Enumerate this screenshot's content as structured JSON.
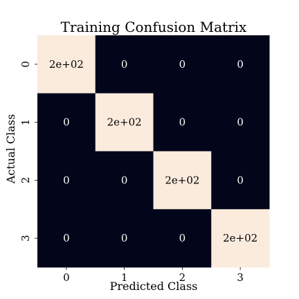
{
  "chart_data": {
    "type": "heatmap",
    "title": "Training Confusion Matrix",
    "xlabel": "Predicted Class",
    "ylabel": "Actual Class",
    "x_categories": [
      "0",
      "1",
      "2",
      "3"
    ],
    "y_categories": [
      "0",
      "1",
      "2",
      "3"
    ],
    "values": [
      [
        200,
        0,
        0,
        0
      ],
      [
        0,
        200,
        0,
        0
      ],
      [
        0,
        0,
        200,
        0
      ],
      [
        0,
        0,
        0,
        200
      ]
    ],
    "annotations": [
      [
        "2e+02",
        "0",
        "0",
        "0"
      ],
      [
        "0",
        "2e+02",
        "0",
        "0"
      ],
      [
        "0",
        "0",
        "2e+02",
        "0"
      ],
      [
        "0",
        "0",
        "0",
        "2e+02"
      ]
    ],
    "colormap": {
      "low": "#03051a",
      "high": "#faebdd"
    },
    "colorbar": false
  }
}
